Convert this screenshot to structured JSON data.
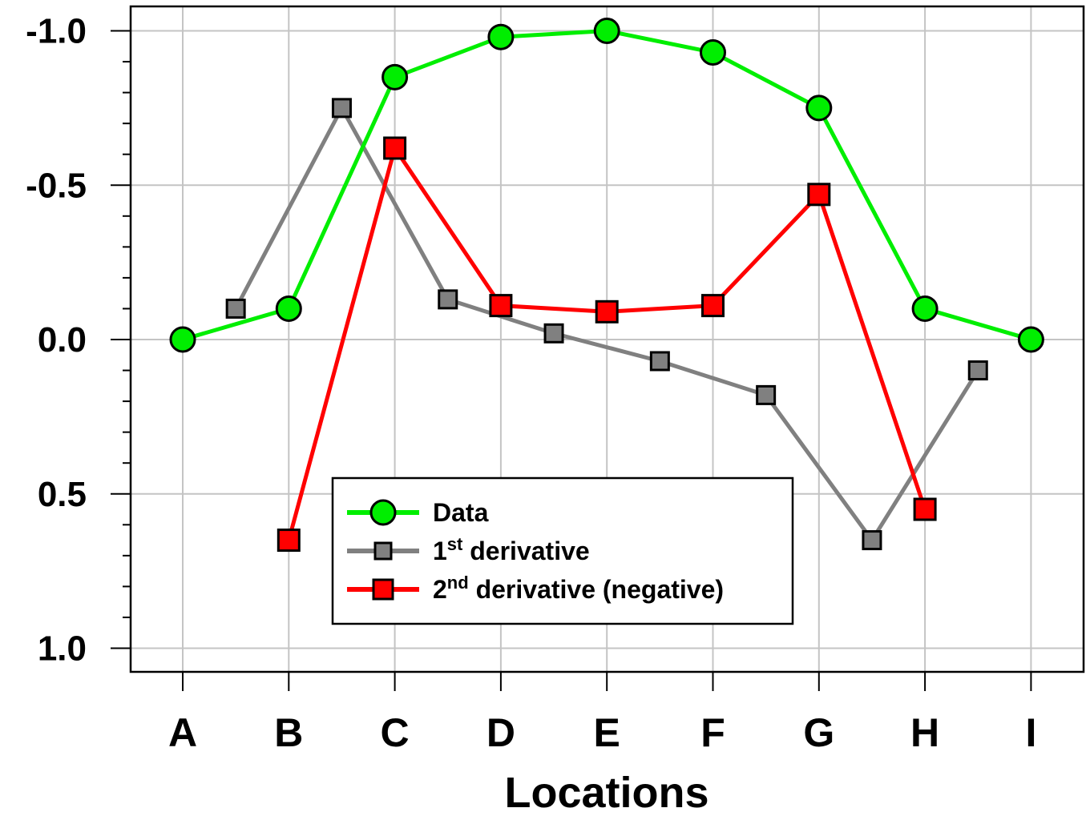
{
  "chart_data": {
    "type": "line",
    "x_categories": [
      "A",
      "B",
      "C",
      "D",
      "E",
      "F",
      "G",
      "H",
      "I"
    ],
    "xlabel": "Locations",
    "ylabel": "",
    "y_axis": {
      "inverted": true,
      "ylim": [
        -1.08,
        1.08
      ],
      "tick_values": [
        -1.0,
        -0.5,
        0.0,
        0.5,
        1.0
      ],
      "tick_labels": [
        "-1.0",
        "-0.5",
        "0.0",
        "0.5",
        "1.0"
      ],
      "minor_step": 0.1
    },
    "grid": true,
    "legend_position": "bottom-center",
    "series": [
      {
        "name": "Data",
        "color": "#00ee00",
        "marker": "circle",
        "x": [
          0,
          1,
          2,
          3,
          4,
          5,
          6,
          7,
          8
        ],
        "y": [
          0.0,
          -0.1,
          -0.85,
          -0.98,
          -1.0,
          -0.93,
          -0.75,
          -0.1,
          0.0
        ]
      },
      {
        "name": "1st derivative",
        "name_parts": [
          "1",
          "st",
          " derivative"
        ],
        "color": "#808080",
        "marker": "square",
        "x": [
          0.5,
          1.5,
          2.5,
          3.5,
          4.5,
          5.5,
          6.5,
          7.5
        ],
        "y": [
          -0.1,
          -0.75,
          -0.13,
          -0.02,
          0.07,
          0.18,
          0.65,
          0.1
        ]
      },
      {
        "name": "2nd derivative (negative)",
        "name_parts": [
          "2",
          "nd",
          " derivative (negative)"
        ],
        "color": "#ff0000",
        "marker": "square",
        "x": [
          1,
          2,
          3,
          4,
          5,
          6,
          7
        ],
        "y": [
          0.65,
          -0.62,
          -0.11,
          -0.09,
          -0.11,
          -0.47,
          0.55
        ]
      }
    ]
  }
}
